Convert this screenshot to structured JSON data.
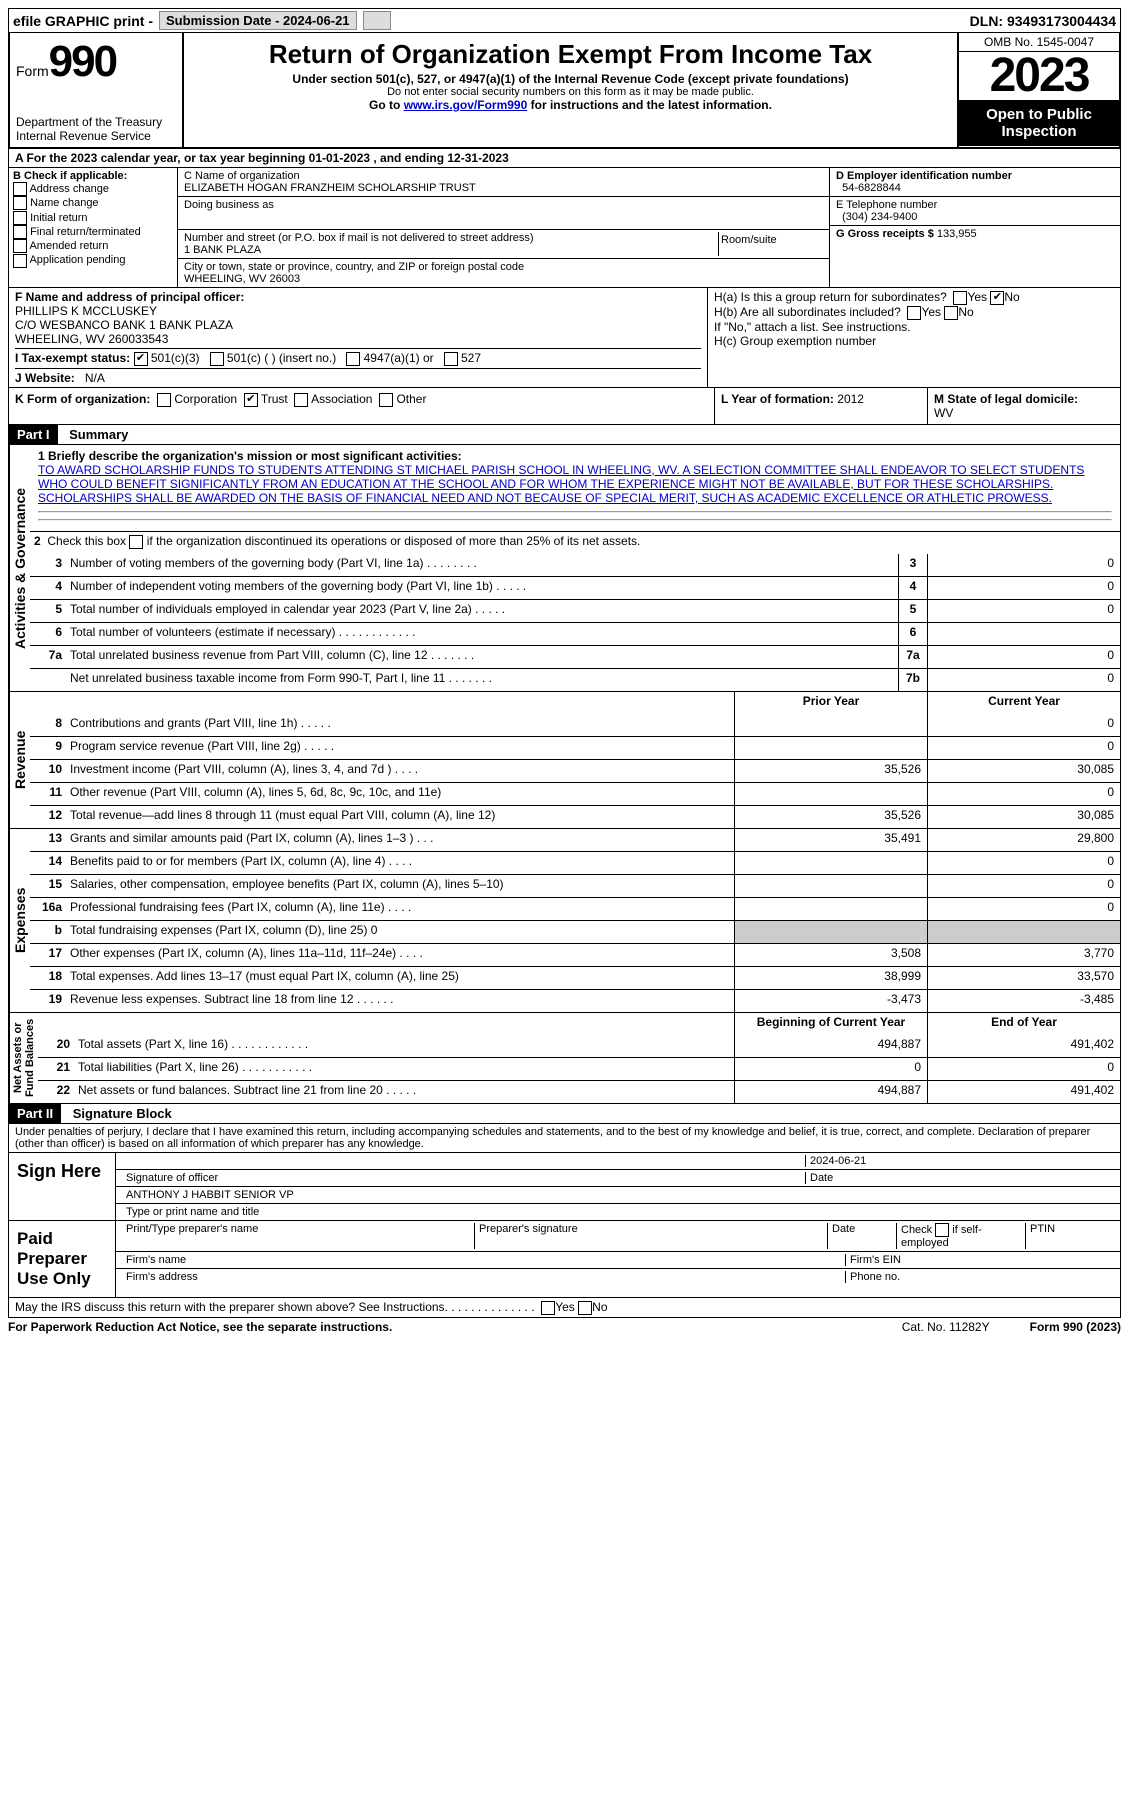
{
  "topbar": {
    "efile": "efile GRAPHIC print -",
    "submission_label": "Submission Date - 2024-06-21",
    "dln": "DLN: 93493173004434"
  },
  "header": {
    "form_word": "Form",
    "form_number": "990",
    "dept": "Department of the Treasury Internal Revenue Service",
    "title": "Return of Organization Exempt From Income Tax",
    "sub1": "Under section 501(c), 527, or 4947(a)(1) of the Internal Revenue Code (except private foundations)",
    "sub2": "Do not enter social security numbers on this form as it may be made public.",
    "sub3": "Go to www.irs.gov/Form990 for instructions and the latest information.",
    "omb": "OMB No. 1545-0047",
    "year": "2023",
    "open": "Open to Public Inspection"
  },
  "periodA": "A For the 2023 calendar year, or tax year beginning 01-01-2023   , and ending 12-31-2023",
  "checkB": {
    "heading": "B Check if applicable:",
    "items": [
      "Address change",
      "Name change",
      "Initial return",
      "Final return/terminated",
      "Amended return",
      "Application pending"
    ]
  },
  "org": {
    "name_lbl": "C Name of organization",
    "name": "ELIZABETH HOGAN FRANZHEIM SCHOLARSHIP TRUST",
    "dba_lbl": "Doing business as",
    "street_lbl": "Number and street (or P.O. box if mail is not delivered to street address)",
    "room_lbl": "Room/suite",
    "street": "1 BANK PLAZA",
    "city_lbl": "City or town, state or province, country, and ZIP or foreign postal code",
    "city": "WHEELING, WV  26003"
  },
  "ein_lbl": "D Employer identification number",
  "ein": "54-6828844",
  "phone_lbl": "E Telephone number",
  "phone": "(304) 234-9400",
  "gross_lbl": "G Gross receipts $",
  "gross": "133,955",
  "officer": {
    "lbl": "F Name and address of principal officer:",
    "name": "PHILLIPS K MCCLUSKEY",
    "line2": "C/O WESBANCO BANK 1 BANK PLAZA",
    "line3": "WHEELING, WV  260033543"
  },
  "h": {
    "a": "H(a)  Is this a group return for subordinates?",
    "b": "H(b)  Are all subordinates included?",
    "b2": "If \"No,\" attach a list. See instructions.",
    "c": "H(c)  Group exemption number"
  },
  "taxstatus": {
    "lbl": "I    Tax-exempt status:",
    "opts": [
      "501(c)(3)",
      "501(c) (  ) (insert no.)",
      "4947(a)(1) or",
      "527"
    ]
  },
  "website_lbl": "J   Website:",
  "website": "N/A",
  "formorg": {
    "lbl": "K Form of organization:",
    "opts": [
      "Corporation",
      "Trust",
      "Association",
      "Other"
    ]
  },
  "yearform_lbl": "L Year of formation:",
  "yearform": "2012",
  "domicile_lbl": "M State of legal domicile:",
  "domicile": "WV",
  "part1": {
    "hdr": "Part I",
    "title": "Summary",
    "q1_lbl": "1   Briefly describe the organization's mission or most significant activities:",
    "mission": "TO AWARD SCHOLARSHIP FUNDS TO STUDENTS ATTENDING ST MICHAEL PARISH SCHOOL IN WHEELING, WV. A SELECTION COMMITTEE SHALL ENDEAVOR TO SELECT STUDENTS WHO COULD BENEFIT SIGNIFICANTLY FROM AN EDUCATION AT THE SCHOOL AND FOR WHOM THE EXPERIENCE MIGHT NOT BE AVAILABLE, BUT FOR THESE SCHOLARSHIPS. SCHOLARSHIPS SHALL BE AWARDED ON THE BASIS OF FINANCIAL NEED AND NOT BECAUSE OF SPECIAL MERIT, SUCH AS ACADEMIC EXCELLENCE OR ATHLETIC PROWESS.",
    "q2": "2   Check this box      if the organization discontinued its operations or disposed of more than 25% of its net assets."
  },
  "gov_lines": [
    {
      "n": "3",
      "t": "Number of voting members of the governing body (Part VI, line 1a)   .   .   .   .   .   .   .   .",
      "box": "3",
      "v": "0"
    },
    {
      "n": "4",
      "t": "Number of independent voting members of the governing body (Part VI, line 1b)  .   .   .   .   .",
      "box": "4",
      "v": "0"
    },
    {
      "n": "5",
      "t": "Total number of individuals employed in calendar year 2023 (Part V, line 2a)   .   .   .   .   .",
      "box": "5",
      "v": "0"
    },
    {
      "n": "6",
      "t": "Total number of volunteers (estimate if necessary)    .   .   .   .   .   .   .   .   .   .   .   .",
      "box": "6",
      "v": ""
    },
    {
      "n": "7a",
      "t": "Total unrelated business revenue from Part VIII, column (C), line 12   .   .   .   .   .   .   .",
      "box": "7a",
      "v": "0"
    },
    {
      "n": "",
      "t": "Net unrelated business taxable income from Form 990-T, Part I, line 11  .   .   .   .   .   .   .",
      "box": "7b",
      "v": "0"
    }
  ],
  "col_hdr": {
    "prior": "Prior Year",
    "current": "Current Year"
  },
  "rev_lines": [
    {
      "n": "8",
      "t": "Contributions and grants (Part VIII, line 1h)   .   .   .   .   .",
      "p": "",
      "c": "0"
    },
    {
      "n": "9",
      "t": "Program service revenue (Part VIII, line 2g)   .   .   .   .   .",
      "p": "",
      "c": "0"
    },
    {
      "n": "10",
      "t": "Investment income (Part VIII, column (A), lines 3, 4, and 7d )   .   .   .   .",
      "p": "35,526",
      "c": "30,085"
    },
    {
      "n": "11",
      "t": "Other revenue (Part VIII, column (A), lines 5, 6d, 8c, 9c, 10c, and 11e)",
      "p": "",
      "c": "0"
    },
    {
      "n": "12",
      "t": "Total revenue—add lines 8 through 11 (must equal Part VIII, column (A), line 12)",
      "p": "35,526",
      "c": "30,085"
    }
  ],
  "exp_lines": [
    {
      "n": "13",
      "t": "Grants and similar amounts paid (Part IX, column (A), lines 1–3 )   .   .   .",
      "p": "35,491",
      "c": "29,800"
    },
    {
      "n": "14",
      "t": "Benefits paid to or for members (Part IX, column (A), line 4)   .   .   .   .",
      "p": "",
      "c": "0"
    },
    {
      "n": "15",
      "t": "Salaries, other compensation, employee benefits (Part IX, column (A), lines 5–10)",
      "p": "",
      "c": "0"
    },
    {
      "n": "16a",
      "t": "Professional fundraising fees (Part IX, column (A), line 11e)   .   .   .   .",
      "p": "",
      "c": "0"
    },
    {
      "n": "b",
      "t": "Total fundraising expenses (Part IX, column (D), line 25) 0",
      "p": "shade",
      "c": "shade"
    },
    {
      "n": "17",
      "t": "Other expenses (Part IX, column (A), lines 11a–11d, 11f–24e)   .   .   .   .",
      "p": "3,508",
      "c": "3,770"
    },
    {
      "n": "18",
      "t": "Total expenses. Add lines 13–17 (must equal Part IX, column (A), line 25)",
      "p": "38,999",
      "c": "33,570"
    },
    {
      "n": "19",
      "t": "Revenue less expenses. Subtract line 18 from line 12   .   .   .   .   .   .",
      "p": "-3,473",
      "c": "-3,485"
    }
  ],
  "na_hdr": {
    "beg": "Beginning of Current Year",
    "end": "End of Year"
  },
  "na_lines": [
    {
      "n": "20",
      "t": "Total assets (Part X, line 16)   .   .   .   .   .   .   .   .   .   .   .   .",
      "p": "494,887",
      "c": "491,402"
    },
    {
      "n": "21",
      "t": "Total liabilities (Part X, line 26)   .   .   .   .   .   .   .   .   .   .   .",
      "p": "0",
      "c": "0"
    },
    {
      "n": "22",
      "t": "Net assets or fund balances. Subtract line 21 from line 20   .   .   .   .   .",
      "p": "494,887",
      "c": "491,402"
    }
  ],
  "part2": {
    "hdr": "Part II",
    "title": "Signature Block"
  },
  "penalty": "Under penalties of perjury, I declare that I have examined this return, including accompanying schedules and statements, and to the best of my knowledge and belief, it is true, correct, and complete. Declaration of preparer (other than officer) is based on all information of which preparer has any knowledge.",
  "sign": {
    "here": "Sign Here",
    "date": "2024-06-21",
    "sig_lbl": "Signature of officer",
    "date_lbl": "Date",
    "name": "ANTHONY J HABBIT  SENIOR VP",
    "name_lbl": "Type or print name and title"
  },
  "paid": {
    "lbl": "Paid Preparer Use Only",
    "cols": [
      "Print/Type preparer's name",
      "Preparer's signature",
      "Date",
      "Check       if self-employed",
      "PTIN"
    ],
    "firm_name": "Firm's name",
    "firm_ein": "Firm's EIN",
    "firm_addr": "Firm's address",
    "phone": "Phone no."
  },
  "discuss": "May the IRS discuss this return with the preparer shown above? See Instructions.  .   .   .   .   .   .   .   .   .   .   .   .   .",
  "footer": {
    "l": "For Paperwork Reduction Act Notice, see the separate instructions.",
    "m": "Cat. No. 11282Y",
    "r": "Form 990 (2023)"
  }
}
